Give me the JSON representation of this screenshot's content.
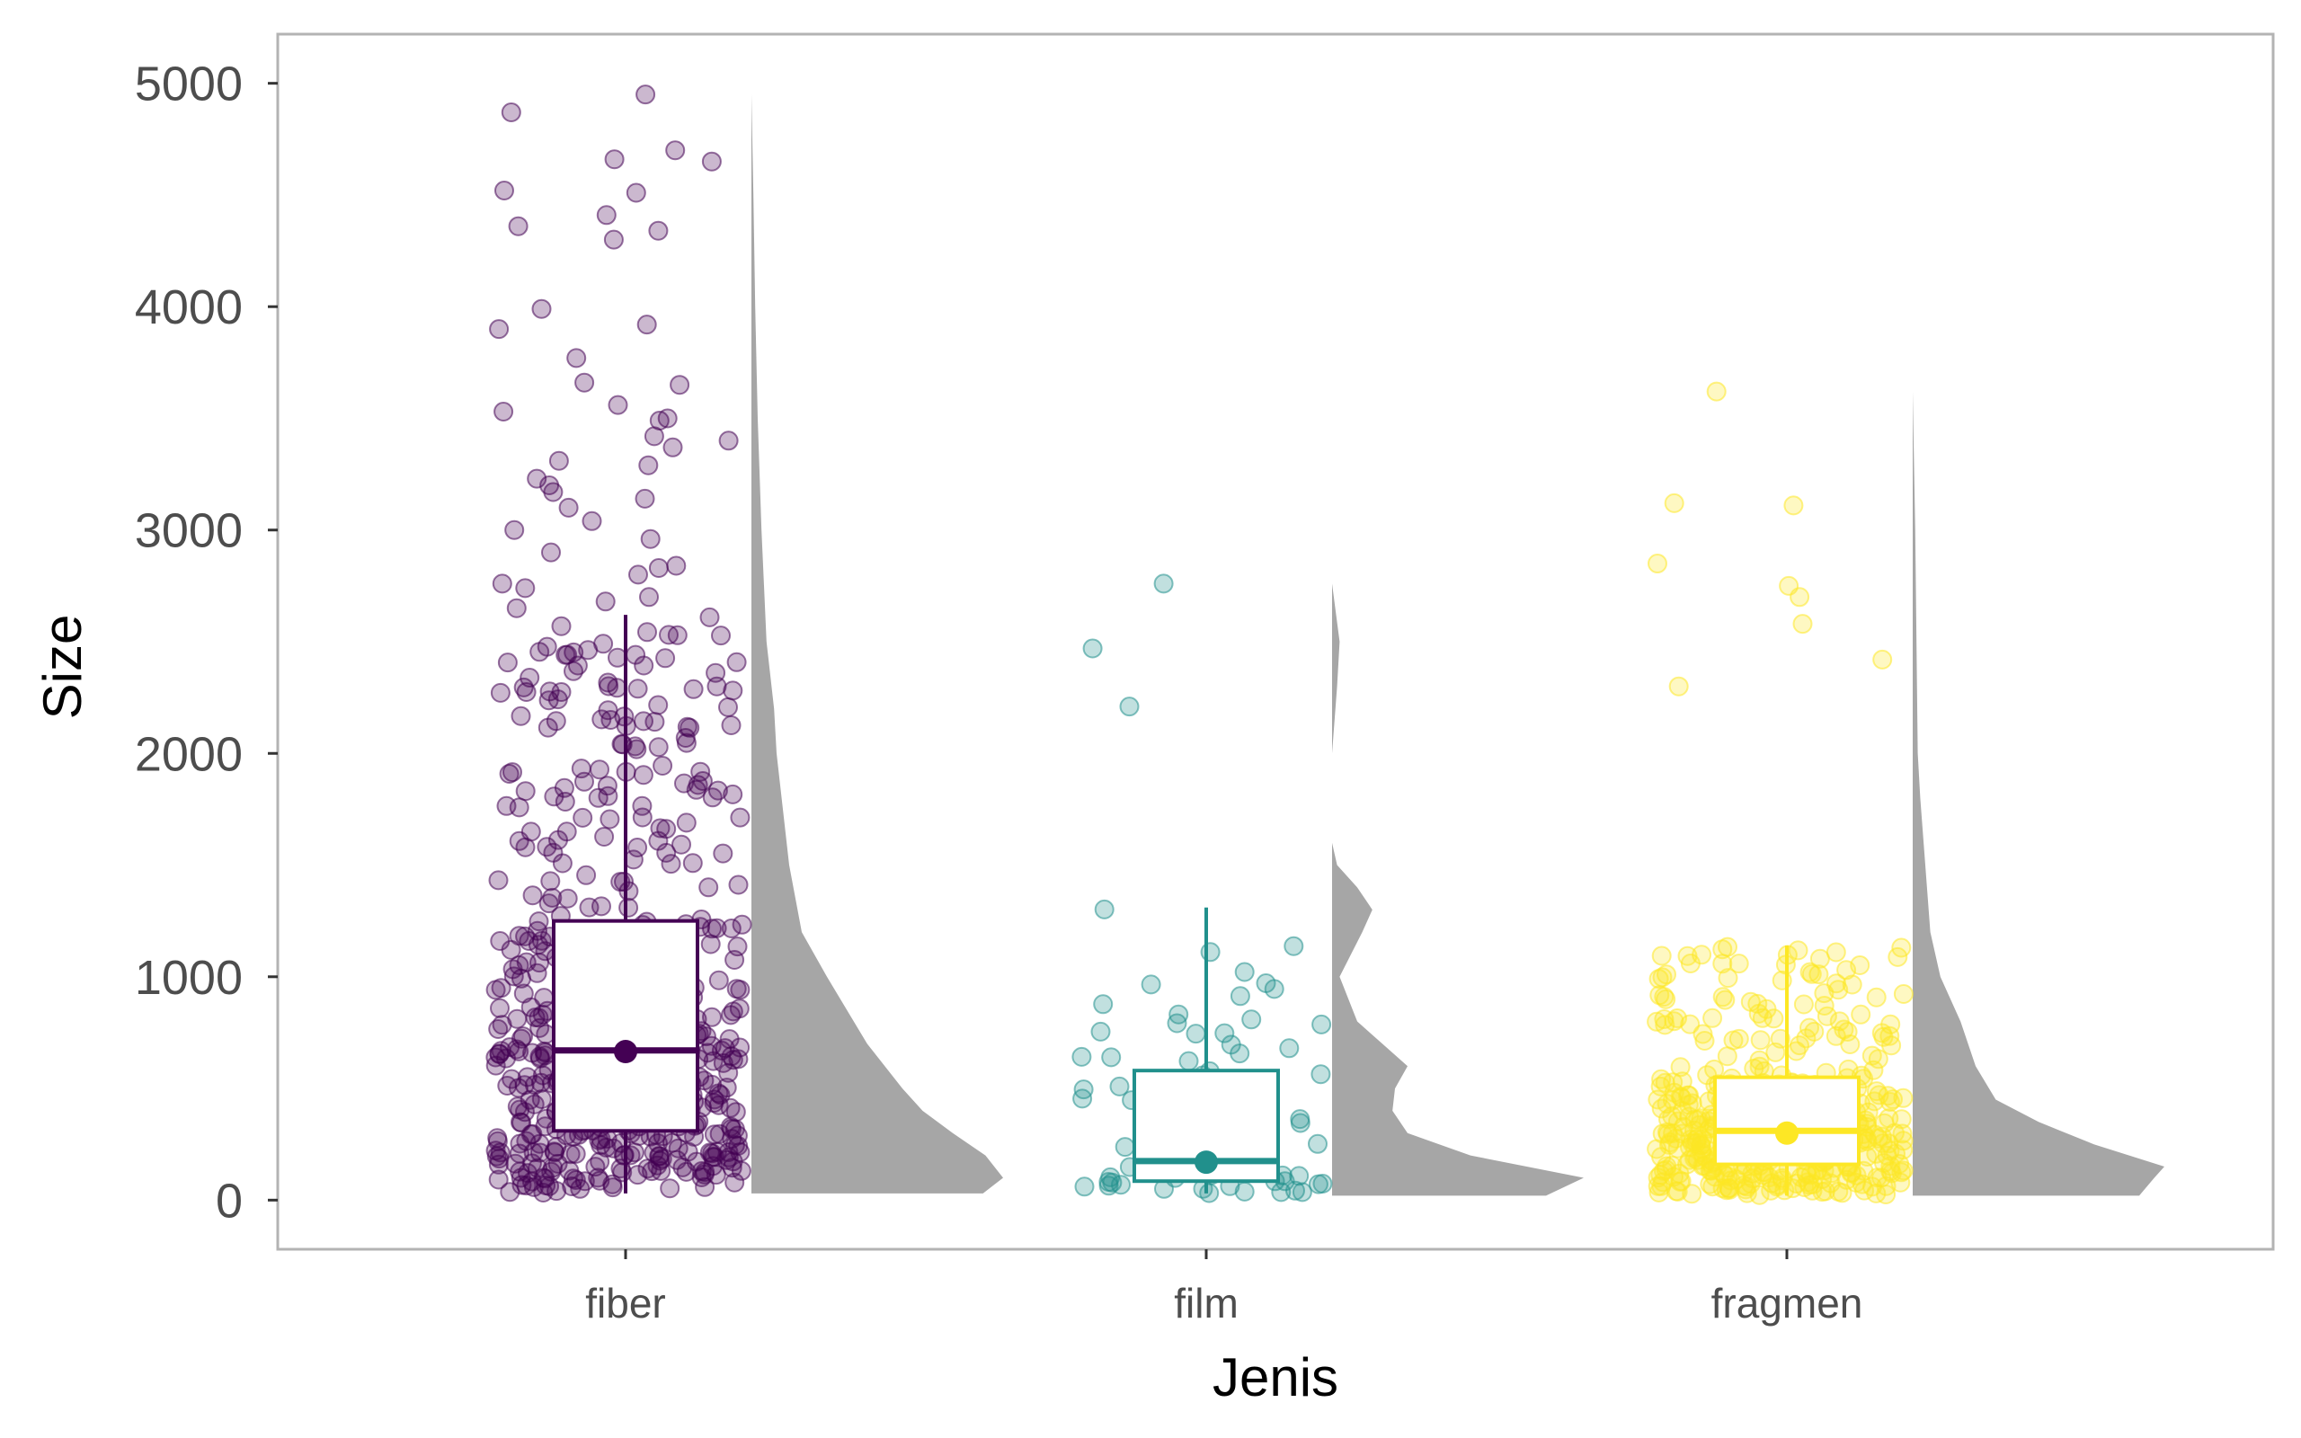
{
  "chart_data": {
    "type": "raincloud",
    "xlabel": "Jenis",
    "ylabel": "Size",
    "ylim": [
      -220,
      5220
    ],
    "yticks": [
      0,
      1000,
      2000,
      3000,
      4000,
      5000
    ],
    "grid": false,
    "legend": "none",
    "categories": [
      "fiber",
      "film",
      "fragmen"
    ],
    "colors": {
      "fiber": "#440154",
      "film": "#21908C",
      "fragmen": "#FDE725"
    },
    "density_color": "#A6A6A6",
    "boxplots": [
      {
        "category": "fiber",
        "q1": 310,
        "median": 670,
        "q3": 1250,
        "whisker_low": 30,
        "whisker_high": 2620,
        "mean": 665
      },
      {
        "category": "film",
        "q1": 85,
        "median": 175,
        "q3": 580,
        "whisker_low": 30,
        "whisker_high": 1310,
        "mean": 170
      },
      {
        "category": "fragmen",
        "q1": 160,
        "median": 310,
        "q3": 550,
        "whisker_low": 20,
        "whisker_high": 1140,
        "mean": 300
      }
    ],
    "outliers": {
      "fiber": [
        4950,
        4870,
        4700,
        4660,
        4650,
        4520,
        4510,
        4410,
        4360,
        4340,
        4300,
        3990,
        3920,
        3900,
        3770,
        3660,
        3650,
        3560,
        3530,
        3500,
        3490,
        3420,
        3400,
        3370,
        3310,
        3290,
        3230,
        3200,
        3170,
        3140,
        3100,
        3040,
        3000,
        2960,
        2900,
        2840,
        2830,
        2800,
        2760,
        2740,
        2700,
        2680,
        2650
      ],
      "film": [
        2760,
        2470,
        2210
      ],
      "fragmen": [
        3620,
        3120,
        3110,
        2850,
        2750,
        2700,
        2580,
        2420,
        2300
      ]
    },
    "density": {
      "fiber": {
        "y": [
          30,
          100,
          200,
          300,
          400,
          500,
          700,
          1000,
          1200,
          1500,
          1800,
          2000,
          2200,
          2500,
          3000,
          3500,
          4000,
          4500,
          4950
        ],
        "d": [
          0.92,
          1.0,
          0.93,
          0.8,
          0.68,
          0.6,
          0.46,
          0.3,
          0.2,
          0.15,
          0.12,
          0.1,
          0.09,
          0.06,
          0.04,
          0.025,
          0.015,
          0.008,
          0.0
        ]
      },
      "film": {
        "y": [
          20,
          100,
          200,
          300,
          400,
          500,
          600,
          700,
          800,
          1000,
          1200,
          1300,
          1400,
          1500,
          1600,
          2000,
          2300,
          2500,
          2760
        ],
        "d": [
          0.85,
          1.0,
          0.55,
          0.3,
          0.24,
          0.25,
          0.3,
          0.2,
          0.1,
          0.03,
          0.12,
          0.16,
          0.1,
          0.02,
          0.0,
          0.0,
          0.02,
          0.03,
          0.0
        ]
      },
      "fragmen": {
        "y": [
          20,
          100,
          150,
          250,
          350,
          450,
          600,
          800,
          1000,
          1200,
          1500,
          1800,
          2000,
          2500,
          3000,
          3620
        ],
        "d": [
          0.9,
          0.96,
          1.0,
          0.72,
          0.5,
          0.33,
          0.25,
          0.19,
          0.11,
          0.07,
          0.05,
          0.03,
          0.02,
          0.015,
          0.01,
          0.0
        ]
      }
    },
    "point_counts": {
      "fiber": 520,
      "film": 62,
      "fragmen": 430
    }
  }
}
